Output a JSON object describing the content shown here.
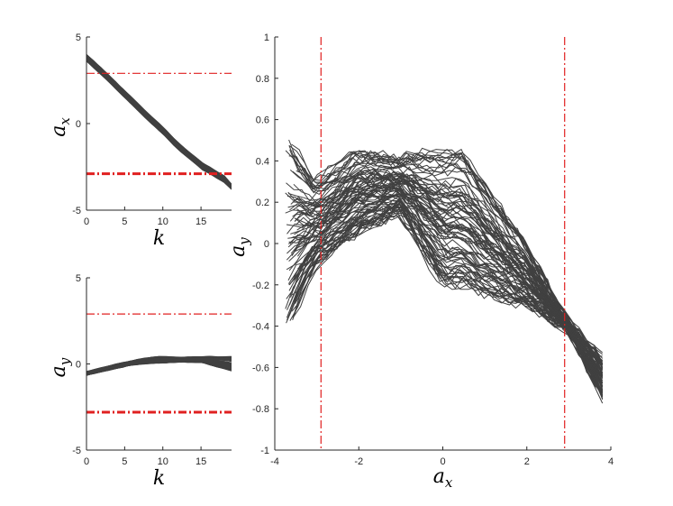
{
  "chart_data": [
    {
      "panel": "top-left",
      "type": "line",
      "xlabel": "k",
      "ylabel": "a_x",
      "xlim": [
        0,
        19
      ],
      "ylim": [
        -5,
        5
      ],
      "xticks": [
        "0",
        "5",
        "10",
        "15"
      ],
      "yticks": [
        "-5",
        "0",
        "5"
      ],
      "line_color": "#404040",
      "reference_lines": [
        {
          "orientation": "horizontal",
          "value": 2.9,
          "style": "dash-dot",
          "color": "#e02020",
          "width": "thin"
        },
        {
          "orientation": "horizontal",
          "value": -2.9,
          "style": "dash-dot",
          "color": "#e02020",
          "width": "thick"
        }
      ],
      "series_envelope": {
        "x": [
          0,
          2,
          5,
          8,
          10,
          12,
          15,
          18,
          19
        ],
        "y_low": [
          3.6,
          2.8,
          1.5,
          0.2,
          -0.6,
          -1.5,
          -2.6,
          -3.4,
          -3.8
        ],
        "y_high": [
          4.0,
          3.2,
          1.9,
          0.6,
          -0.2,
          -1.1,
          -2.2,
          -3.0,
          -3.5
        ]
      }
    },
    {
      "panel": "bottom-left",
      "type": "line",
      "xlabel": "k",
      "ylabel": "a_y",
      "xlim": [
        0,
        19
      ],
      "ylim": [
        -5,
        5
      ],
      "xticks": [
        "0",
        "5",
        "10",
        "15"
      ],
      "yticks": [
        "-5",
        "0",
        "5"
      ],
      "line_color": "#404040",
      "reference_lines": [
        {
          "orientation": "horizontal",
          "value": 2.9,
          "style": "dash-dot",
          "color": "#e02020",
          "width": "thin"
        },
        {
          "orientation": "horizontal",
          "value": -2.8,
          "style": "dash-dot",
          "color": "#e02020",
          "width": "thick"
        }
      ],
      "series_envelope": {
        "x": [
          0,
          3,
          6,
          9,
          12,
          15,
          19
        ],
        "y_low": [
          -0.65,
          -0.35,
          -0.05,
          0.05,
          0.1,
          0.1,
          -0.4
        ],
        "y_high": [
          -0.45,
          -0.1,
          0.2,
          0.45,
          0.4,
          0.45,
          0.45
        ]
      }
    },
    {
      "panel": "right",
      "type": "line",
      "xlabel": "a_x",
      "ylabel": "a_y",
      "xlim": [
        -4,
        4
      ],
      "ylim": [
        -1,
        1
      ],
      "xticks": [
        "-4",
        "-2",
        "0",
        "2",
        "4"
      ],
      "yticks": [
        "-1",
        "-0.8",
        "-0.6",
        "-0.4",
        "-0.2",
        "0",
        "0.2",
        "0.4",
        "0.6",
        "0.8",
        "1"
      ],
      "line_color": "#404040",
      "reference_lines": [
        {
          "orientation": "vertical",
          "value": -2.9,
          "style": "dash-dot",
          "color": "#e02020",
          "width": "thin"
        },
        {
          "orientation": "vertical",
          "value": 2.9,
          "style": "dash-dot",
          "color": "#e02020",
          "width": "thin"
        }
      ],
      "series_envelope": {
        "x": [
          -3.6,
          -3.0,
          -2.0,
          -1.0,
          0.0,
          0.5,
          1.0,
          2.0,
          3.0,
          3.8
        ],
        "y_low": [
          -0.38,
          -0.1,
          0.05,
          0.15,
          -0.2,
          -0.2,
          -0.25,
          -0.3,
          -0.42,
          -0.75
        ],
        "y_high": [
          0.5,
          0.3,
          0.45,
          0.42,
          0.45,
          0.45,
          0.3,
          0.0,
          -0.38,
          -0.55
        ]
      }
    }
  ]
}
